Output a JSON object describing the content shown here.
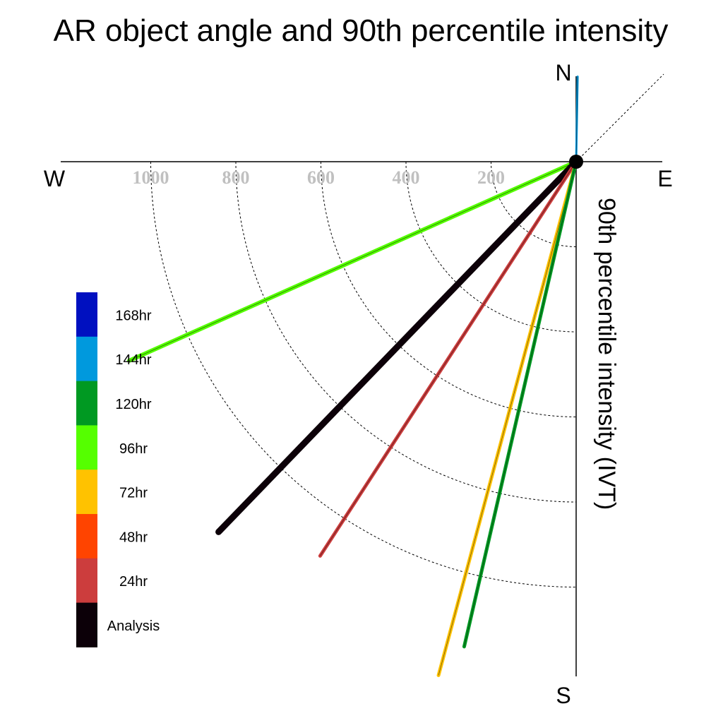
{
  "chart_data": {
    "type": "polar-vector",
    "title": "AR object angle and 90th percentile intensity",
    "ylabel": "90th percentile intensity (IVT)",
    "compass": {
      "north": "N",
      "south": "S",
      "east": "E",
      "west": "W"
    },
    "radial_ticks": [
      "200",
      "400",
      "600",
      "800",
      "1000"
    ],
    "radial_values": [
      200,
      400,
      600,
      800,
      1000
    ],
    "rlim": [
      0,
      1200
    ],
    "diagonal_reference_deg": 45,
    "grid": "dashed arcs (SW quadrant)",
    "legend": {
      "position": "left",
      "entries": [
        {
          "label": "168hr",
          "color": "#0010c0"
        },
        {
          "label": "144hr",
          "color": "#0099dd"
        },
        {
          "label": "120hr",
          "color": "#009922"
        },
        {
          "label": "96hr",
          "color": "#55ff00"
        },
        {
          "label": "72hr",
          "color": "#ffc200"
        },
        {
          "label": "48hr",
          "color": "#ff4400"
        },
        {
          "label": "24hr",
          "color": "#cc3d3d"
        },
        {
          "label": "Analysis",
          "color": "#0c0008"
        }
      ]
    },
    "vectors": [
      {
        "label": "144hr",
        "angle_deg": 1,
        "magnitude": 200,
        "color": "#0099dd",
        "width": 3
      },
      {
        "label": "96hr",
        "angle_deg": 246,
        "magnitude": 1150,
        "color": "#55ff00",
        "width": 6
      },
      {
        "label": "Analysis",
        "angle_deg": 224,
        "magnitude": 1210,
        "color": "#0c0008",
        "width": 9
      },
      {
        "label": "24hr",
        "angle_deg": 213,
        "magnitude": 1105,
        "color": "#cc3d3d",
        "width": 5
      },
      {
        "label": "72hr",
        "angle_deg": 195,
        "magnitude": 1250,
        "color": "#ffc200",
        "width": 5
      },
      {
        "label": "120hr",
        "angle_deg": 193,
        "magnitude": 1170,
        "color": "#009922",
        "width": 5
      }
    ]
  }
}
